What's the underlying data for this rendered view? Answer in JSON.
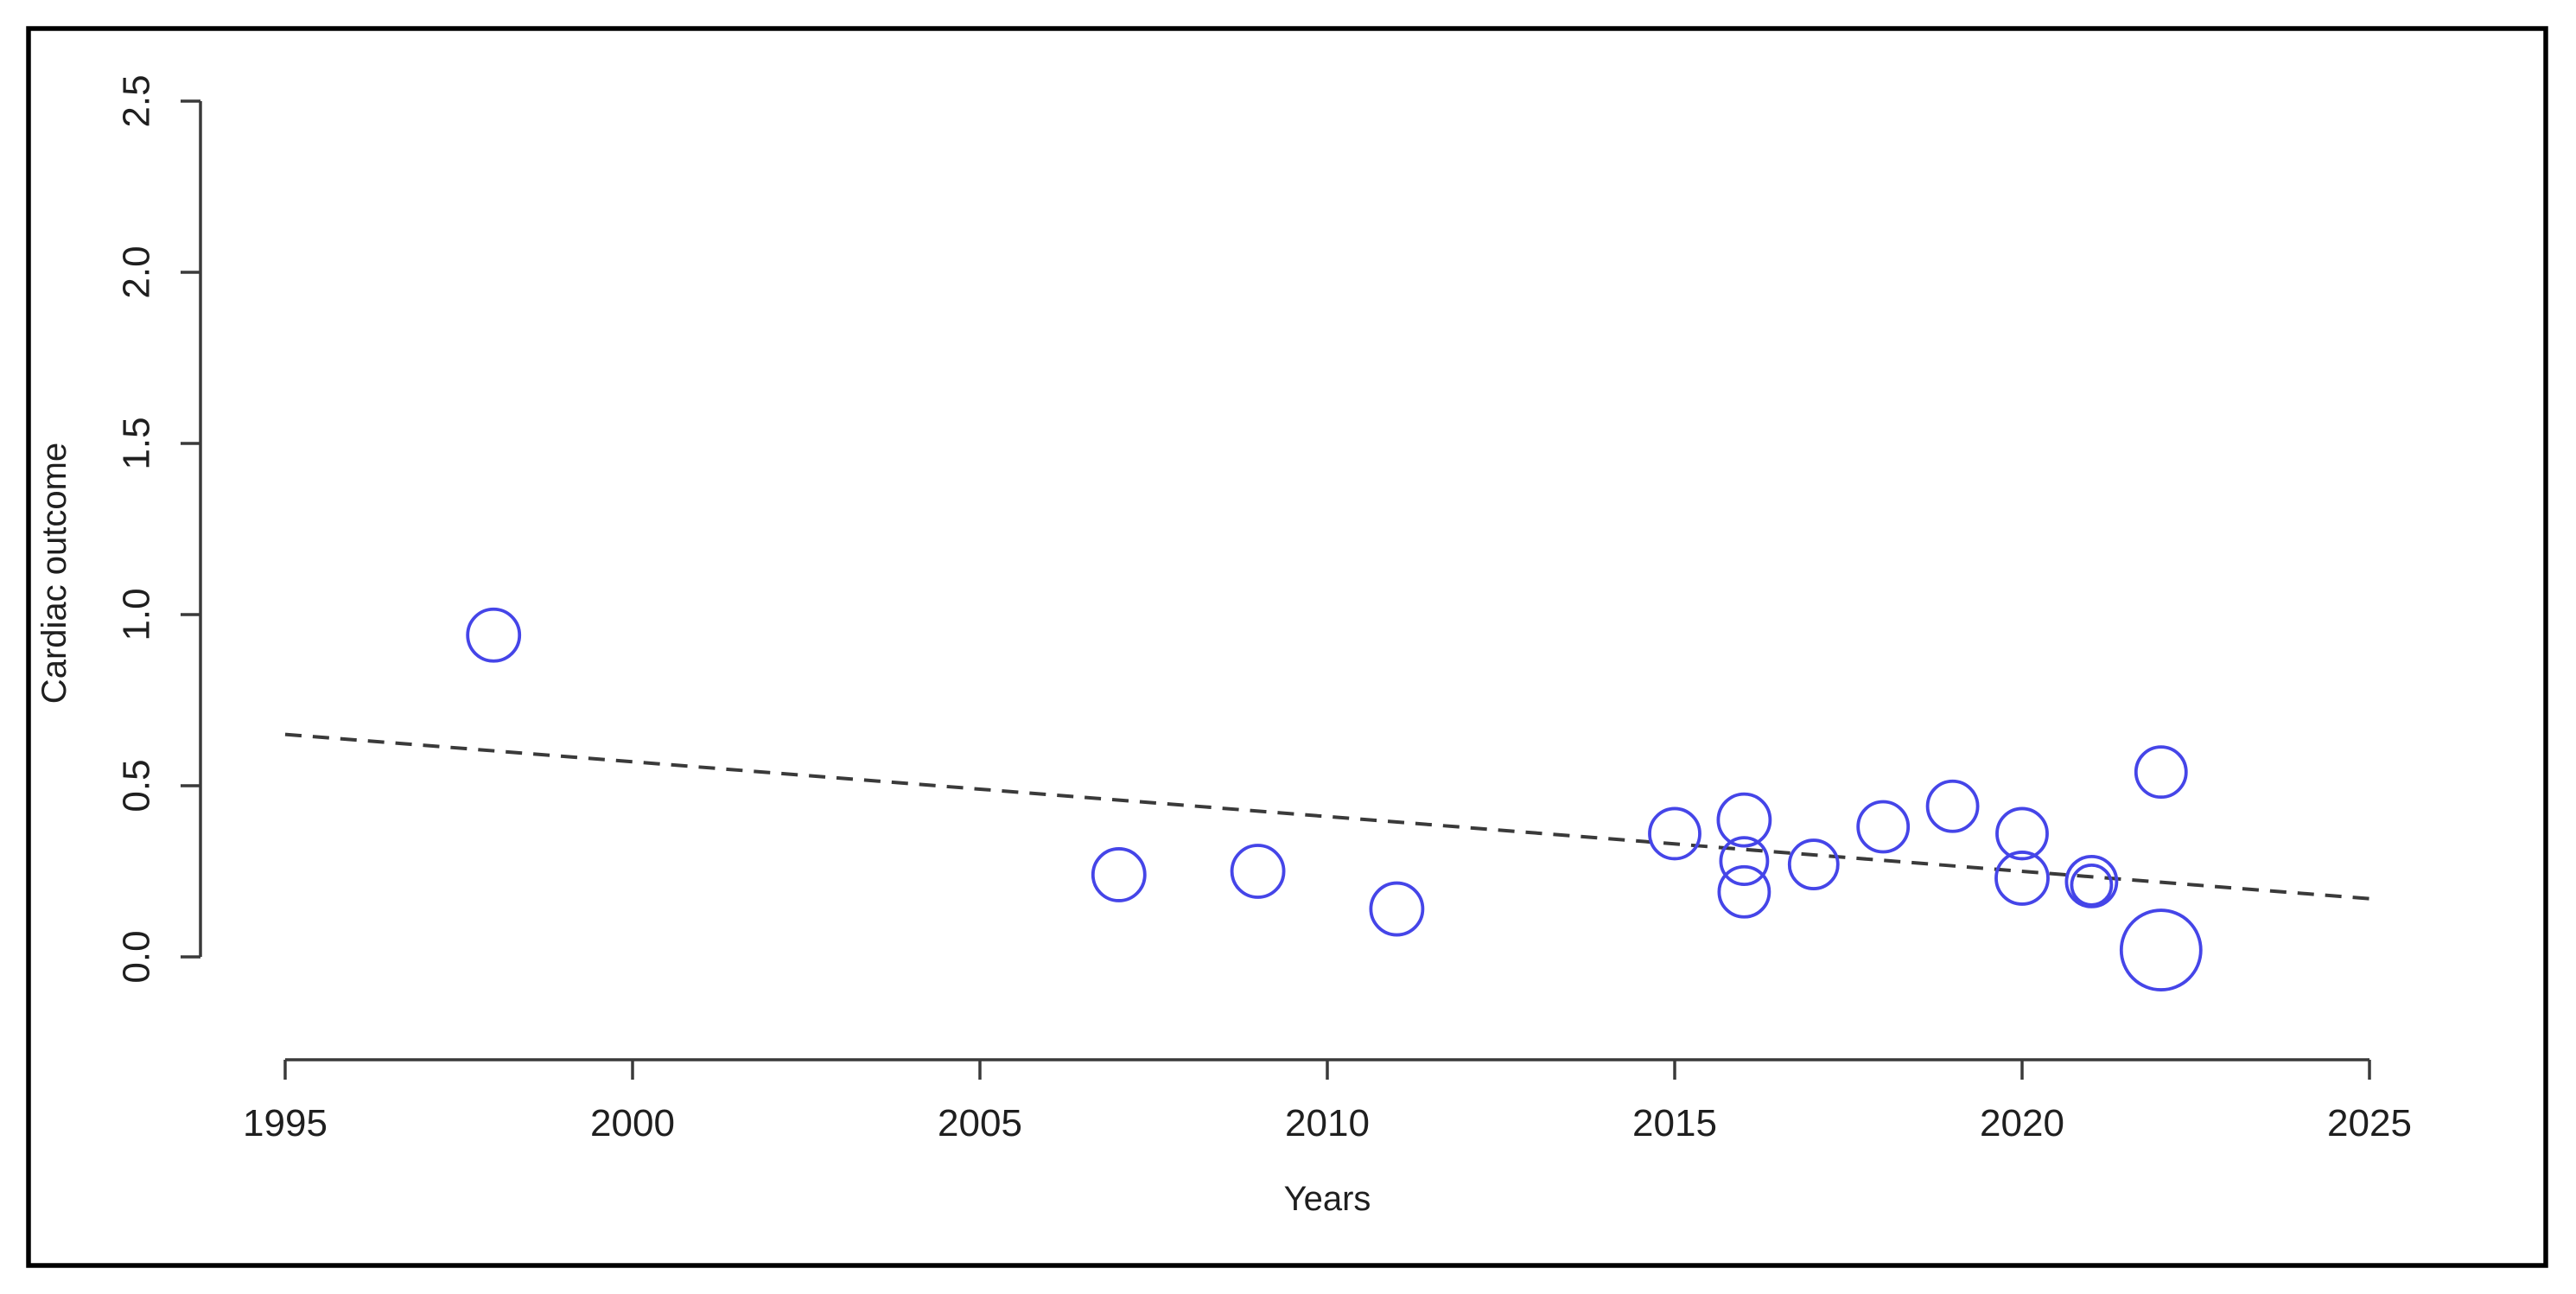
{
  "chart_data": {
    "type": "scatter",
    "subtype": "bubble",
    "xlabel": "Years",
    "ylabel": "Cardiac outcome",
    "x_ticks": [
      "1995",
      "2000",
      "2005",
      "2010",
      "2015",
      "2020",
      "2025"
    ],
    "y_ticks": [
      "0.0",
      "0.5",
      "1.0",
      "1.5",
      "2.0",
      "2.5"
    ],
    "xlim": [
      1995,
      2025
    ],
    "ylim": [
      0.0,
      2.5
    ],
    "grid": false,
    "legend": "none",
    "points": [
      {
        "year": 1998,
        "outcome": 0.94,
        "size": 30
      },
      {
        "year": 2007,
        "outcome": 0.24,
        "size": 30
      },
      {
        "year": 2009,
        "outcome": 0.25,
        "size": 30
      },
      {
        "year": 2011,
        "outcome": 0.14,
        "size": 30
      },
      {
        "year": 2015,
        "outcome": 0.36,
        "size": 29
      },
      {
        "year": 2016,
        "outcome": 0.4,
        "size": 30
      },
      {
        "year": 2016,
        "outcome": 0.28,
        "size": 27
      },
      {
        "year": 2016,
        "outcome": 0.19,
        "size": 29
      },
      {
        "year": 2017,
        "outcome": 0.27,
        "size": 28
      },
      {
        "year": 2018,
        "outcome": 0.38,
        "size": 29
      },
      {
        "year": 2019,
        "outcome": 0.44,
        "size": 29
      },
      {
        "year": 2020,
        "outcome": 0.36,
        "size": 29
      },
      {
        "year": 2020,
        "outcome": 0.23,
        "size": 30
      },
      {
        "year": 2021,
        "outcome": 0.22,
        "size": 29
      },
      {
        "year": 2021,
        "outcome": 0.21,
        "size": 23
      },
      {
        "year": 2022,
        "outcome": 0.54,
        "size": 29
      },
      {
        "year": 2022,
        "outcome": 0.02,
        "size": 46
      }
    ],
    "trend_line": {
      "style": "dashed",
      "start": {
        "year": 1995,
        "outcome": 0.65
      },
      "end": {
        "year": 2025,
        "outcome": 0.17
      }
    }
  },
  "colors": {
    "bubble_stroke": "#4545e8",
    "trend": "#3a3a3a",
    "axis": "#3a3a3a",
    "text": "#1f1f1f",
    "border": "#000000",
    "background": "#ffffff"
  }
}
